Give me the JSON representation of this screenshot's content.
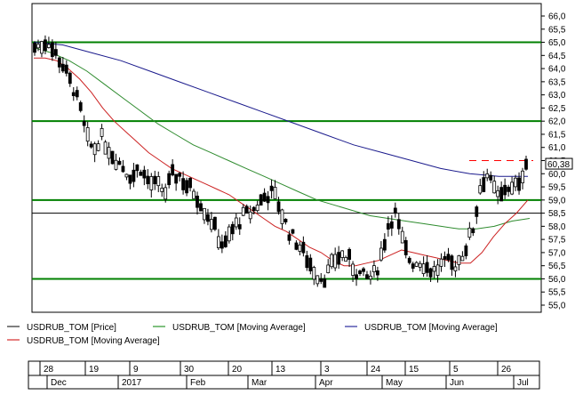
{
  "chart_data": {
    "type": "candlestick",
    "title": "",
    "ylim": [
      54.5,
      66.5
    ],
    "yticks": [
      "66,0",
      "65,5",
      "65,0",
      "64,5",
      "64,0",
      "63,5",
      "63,0",
      "62,5",
      "62,0",
      "61,5",
      "61,0",
      "60,5",
      "60,0",
      "59,5",
      "59,0",
      "58,5",
      "58,0",
      "57,5",
      "57,0",
      "56,5",
      "56,0",
      "55,5",
      "55,0"
    ],
    "ytick_values": [
      66.0,
      65.5,
      65.0,
      64.5,
      64.0,
      63.5,
      63.0,
      62.5,
      62.0,
      61.5,
      61.0,
      60.5,
      60.0,
      59.5,
      59.0,
      58.5,
      58.0,
      57.5,
      57.0,
      56.5,
      56.0,
      55.5,
      55.0
    ],
    "last_price_label": "60,38",
    "last_price": 60.38,
    "horizontal_levels": [
      {
        "value": 65.0,
        "color": "#008000"
      },
      {
        "value": 62.0,
        "color": "#008000"
      },
      {
        "value": 59.0,
        "color": "#008000"
      },
      {
        "value": 58.5,
        "color": "#000000"
      },
      {
        "value": 56.0,
        "color": "#008000"
      }
    ],
    "resistance_dashed": {
      "value": 60.5,
      "color": "#ff0000"
    },
    "day_ticks": [
      "28",
      "19",
      "9",
      "30",
      "20",
      "13",
      "3",
      "24",
      "15",
      "5",
      "26"
    ],
    "month_labels": [
      "Dec",
      "2017",
      "Feb",
      "Mar",
      "Apr",
      "May",
      "Jun",
      "Jul"
    ],
    "legend": [
      {
        "label": "USDRUB_TOM [Price]",
        "color": "#000000"
      },
      {
        "label": "USDRUB_TOM [Moving Average]",
        "color": "#008000"
      },
      {
        "label": "USDRUB_TOM [Moving Average]",
        "color": "#00008b"
      },
      {
        "label": "USDRUB_TOM [Moving Average]",
        "color": "#cc0000"
      }
    ],
    "series_trend_points": [
      {
        "name": "price",
        "values": [
          64.8,
          64.9,
          65.1,
          64.6,
          64.3,
          63.7,
          63.2,
          62.4,
          61.3,
          60.9,
          61.4,
          61.1,
          60.7,
          60.4,
          60.1,
          59.9,
          60.3,
          59.8,
          59.6,
          59.5,
          59.3,
          59.9,
          60.0,
          59.6,
          59.4,
          59.1,
          58.6,
          58.2,
          57.6,
          57.2,
          57.8,
          58.1,
          58.4,
          58.5,
          58.8,
          59.1,
          59.3,
          59.0,
          58.3,
          57.7,
          57.4,
          57.0,
          56.6,
          56.2,
          56.0,
          56.3,
          56.8,
          56.9,
          56.7,
          56.3,
          56.1,
          56.0,
          56.2,
          57.0,
          58.1,
          58.5,
          57.5,
          56.8,
          56.6,
          56.7,
          56.4,
          56.3,
          56.5,
          56.6,
          56.5,
          56.8,
          57.3,
          58.0,
          59.5,
          60.0,
          59.4,
          59.0,
          59.6,
          59.3,
          59.8,
          60.4
        ]
      },
      {
        "name": "ma_red",
        "values": [
          64.4,
          64.4,
          64.3,
          64.0,
          63.6,
          63.1,
          62.5,
          62.0,
          61.6,
          61.2,
          60.8,
          60.5,
          60.2,
          60.0,
          59.8,
          59.6,
          59.4,
          59.2,
          58.9,
          58.6,
          58.3,
          58.0,
          57.8,
          57.5,
          57.2,
          57.0,
          56.7,
          56.5,
          56.5,
          56.6,
          56.7,
          56.9,
          57.1,
          57.0,
          56.9,
          56.8,
          56.7,
          56.6,
          56.6,
          57.0,
          57.6,
          58.1,
          58.5,
          59.0
        ]
      },
      {
        "name": "ma_green",
        "values": [
          64.8,
          64.6,
          64.3,
          63.9,
          63.4,
          62.9,
          62.4,
          61.9,
          61.5,
          61.1,
          60.8,
          60.5,
          60.2,
          59.9,
          59.6,
          59.3,
          59.0,
          58.8,
          58.6,
          58.4,
          58.3,
          58.2,
          58.1,
          58.0,
          57.9,
          57.9,
          58.0,
          58.2,
          58.3
        ]
      },
      {
        "name": "ma_blue",
        "values": [
          65.0,
          64.9,
          64.6,
          64.3,
          63.9,
          63.5,
          63.1,
          62.7,
          62.3,
          61.9,
          61.5,
          61.1,
          60.8,
          60.5,
          60.2,
          60.0,
          59.9,
          59.9
        ]
      }
    ]
  }
}
